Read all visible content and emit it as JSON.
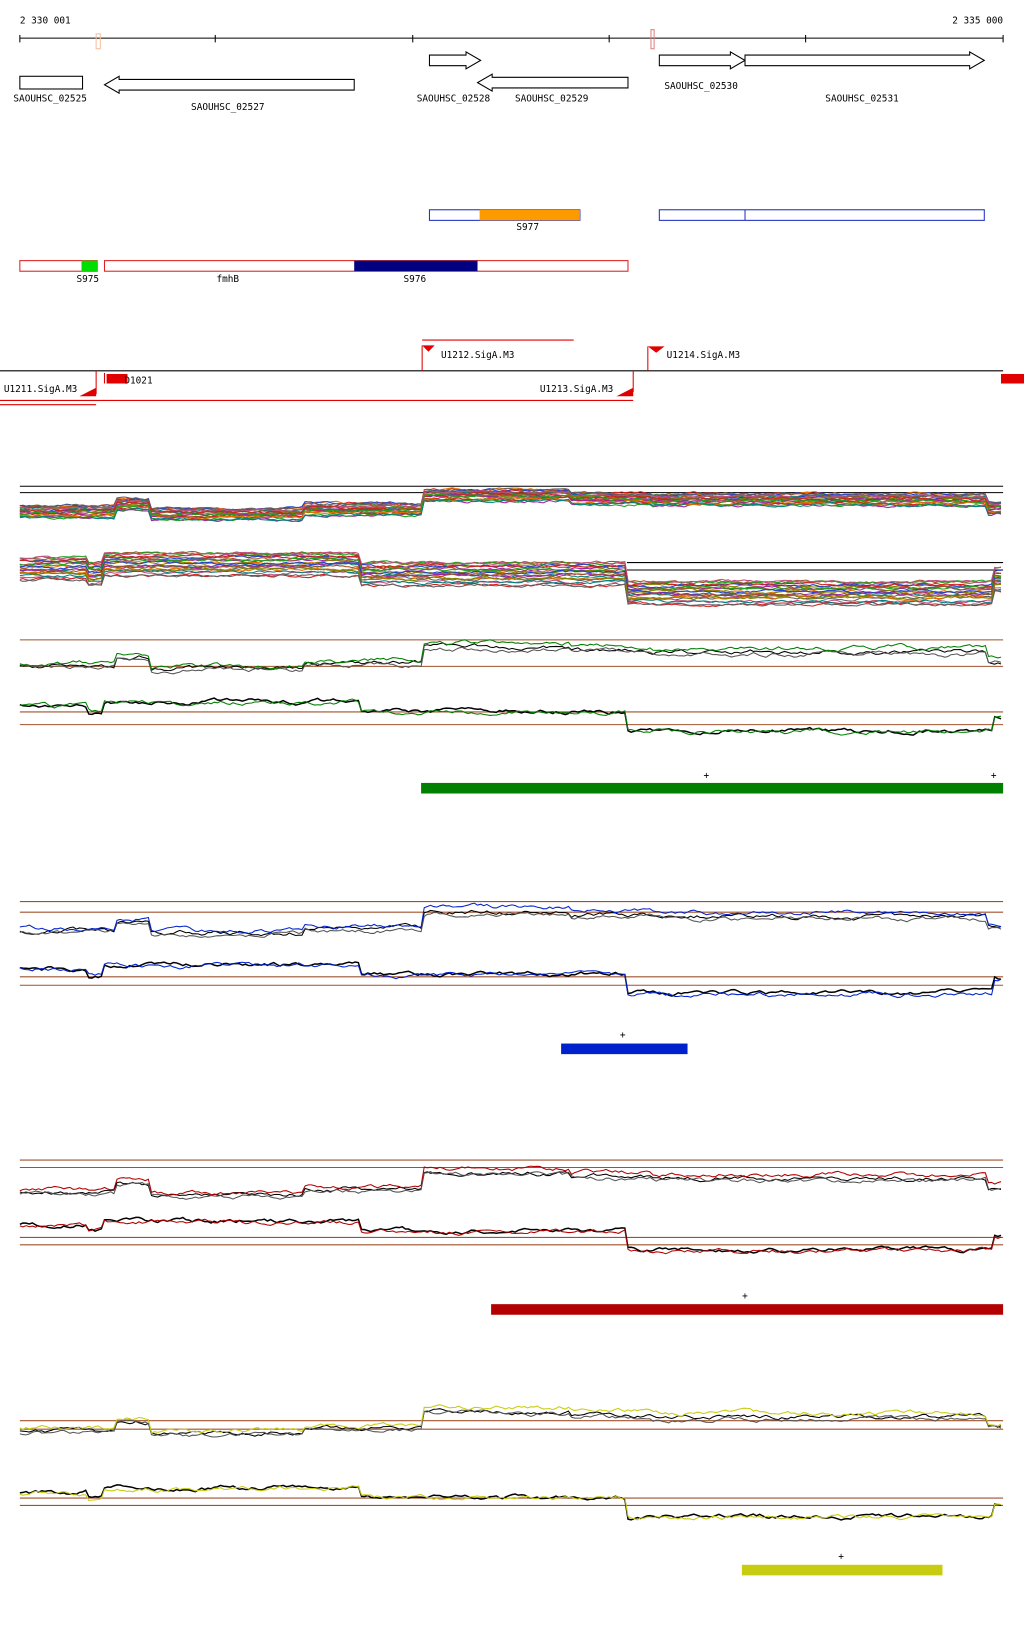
{
  "ruler": {
    "start": "2 330 001",
    "end": "2 335 000"
  },
  "genes": [
    "SAOUHSC_02525",
    "SAOUHSC_02527",
    "SAOUHSC_02528",
    "SAOUHSC_02529",
    "SAOUHSC_02530",
    "SAOUHSC_02531"
  ],
  "segments": [
    "S977",
    "S975",
    "fmhB",
    "S976"
  ],
  "promoters": [
    "U1212.SigA.M3",
    "U1214.SigA.M3",
    "U1211.SigA.M3",
    "D1021",
    "U1213.SigA.M3"
  ],
  "conditions": [
    {
      "color": "#008000",
      "markers": [
        "+",
        "+"
      ]
    },
    {
      "color": "#0022cc",
      "markers": [
        "+"
      ]
    },
    {
      "color": "#b30000",
      "markers": [
        "+"
      ]
    },
    {
      "color": "#c8cc10",
      "markers": [
        "+"
      ]
    }
  ]
}
